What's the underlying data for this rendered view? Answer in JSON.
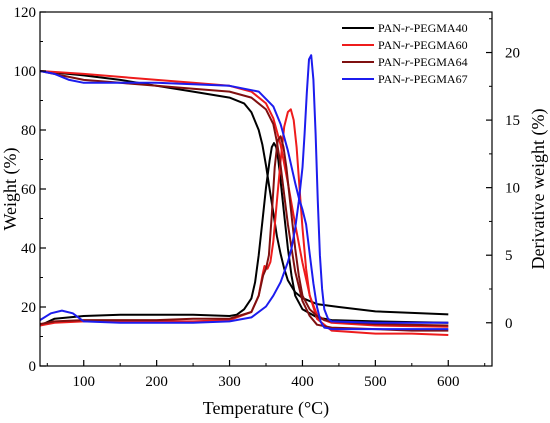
{
  "chart_data": {
    "type": "line",
    "title": "",
    "xlabel": "Temperature (°C)",
    "ylabel_left": "Weight (%)",
    "ylabel_right": "Derivative weight (%)",
    "xlim": [
      40,
      660
    ],
    "ylim_left": [
      0,
      120
    ],
    "ylim_right": [
      -3.2,
      23
    ],
    "x_ticks": [
      100,
      200,
      300,
      400,
      500,
      600
    ],
    "y_left_ticks": [
      0,
      20,
      40,
      60,
      80,
      100,
      120
    ],
    "y_right_ticks": [
      0,
      5,
      10,
      15,
      20
    ],
    "grid": false,
    "legend_position": "top-right",
    "series": [
      {
        "name": "PAN-r-PEGMA40",
        "color": "#000000",
        "weight": {
          "x": [
            40,
            60,
            100,
            150,
            200,
            250,
            300,
            320,
            330,
            340,
            345,
            350,
            355,
            360,
            365,
            370,
            375,
            380,
            390,
            400,
            420,
            450,
            500,
            550,
            600
          ],
          "y": [
            100,
            99.5,
            98.5,
            97,
            95,
            93,
            91,
            89,
            86,
            80,
            75,
            68,
            60,
            52,
            44,
            38,
            33,
            29,
            25,
            23,
            21,
            20,
            18.5,
            18,
            17.5
          ]
        },
        "derivative": {
          "x": [
            40,
            60,
            100,
            150,
            200,
            250,
            300,
            310,
            320,
            330,
            335,
            340,
            345,
            350,
            355,
            358,
            361,
            364,
            367,
            370,
            375,
            380,
            385,
            390,
            400,
            420,
            440,
            500,
            550,
            600
          ],
          "y": [
            -0.2,
            0.3,
            0.5,
            0.6,
            0.6,
            0.6,
            0.5,
            0.6,
            1.0,
            1.8,
            3.0,
            5.0,
            7.5,
            10.0,
            12.0,
            13.0,
            13.3,
            13.0,
            12.0,
            10.5,
            8.0,
            5.5,
            3.5,
            2.0,
            1.0,
            0.4,
            0.2,
            0.1,
            0.05,
            0.0
          ]
        }
      },
      {
        "name": "PAN-r-PEGMA60",
        "color": "#ee1c1c",
        "weight": {
          "x": [
            40,
            100,
            150,
            200,
            250,
            300,
            330,
            350,
            360,
            370,
            380,
            390,
            400,
            410,
            420,
            440,
            500,
            550,
            600
          ],
          "y": [
            100,
            99,
            98,
            97,
            96,
            95,
            93,
            89,
            84,
            75,
            62,
            48,
            35,
            24,
            16,
            12,
            11,
            11,
            10.5
          ]
        },
        "derivative": {
          "x": [
            40,
            60,
            100,
            150,
            200,
            250,
            300,
            330,
            340,
            345,
            348,
            352,
            356,
            360,
            365,
            370,
            375,
            380,
            384,
            388,
            392,
            396,
            400,
            405,
            410,
            420,
            430,
            440,
            500,
            600
          ],
          "y": [
            -0.2,
            0.0,
            0.1,
            0.1,
            0.1,
            0.1,
            0.2,
            0.8,
            2.0,
            3.5,
            4.2,
            4.0,
            4.5,
            6.0,
            9.0,
            12.0,
            14.5,
            15.6,
            15.8,
            15.0,
            13.0,
            10.0,
            7.0,
            4.0,
            2.0,
            0.6,
            0.2,
            0.0,
            -0.2,
            -0.3
          ]
        }
      },
      {
        "name": "PAN-r-PEGMA64",
        "color": "#7f1010",
        "weight": {
          "x": [
            40,
            100,
            150,
            200,
            250,
            300,
            330,
            350,
            360,
            365,
            370,
            375,
            380,
            385,
            390,
            400,
            410,
            420,
            440,
            500,
            550,
            600
          ],
          "y": [
            100,
            97,
            96,
            95,
            94,
            93,
            91,
            87,
            82,
            76,
            68,
            58,
            48,
            40,
            32,
            22,
            17,
            14,
            13,
            12.5,
            12,
            12
          ]
        },
        "derivative": {
          "x": [
            40,
            60,
            100,
            150,
            200,
            250,
            300,
            330,
            340,
            346,
            350,
            354,
            358,
            362,
            366,
            370,
            374,
            378,
            382,
            386,
            390,
            395,
            400,
            410,
            420,
            430,
            440,
            500,
            600
          ],
          "y": [
            -0.1,
            0.1,
            0.2,
            0.2,
            0.2,
            0.3,
            0.3,
            0.8,
            2.0,
            3.5,
            4.0,
            5.0,
            8.0,
            11.5,
            13.5,
            13.8,
            13.0,
            11.5,
            9.5,
            7.5,
            5.5,
            3.5,
            2.0,
            1.0,
            0.5,
            0.2,
            0.1,
            -0.1,
            -0.2
          ]
        }
      },
      {
        "name": "PAN-r-PEGMA67",
        "color": "#1c1cee",
        "weight": {
          "x": [
            40,
            60,
            80,
            100,
            150,
            200,
            250,
            300,
            340,
            360,
            370,
            380,
            390,
            395,
            400,
            405,
            410,
            415,
            420,
            425,
            430,
            435,
            440,
            450,
            500,
            550,
            600
          ],
          "y": [
            100,
            99,
            97,
            96,
            96,
            96,
            95.5,
            95,
            93,
            88,
            82,
            73,
            62,
            57,
            53,
            48,
            38,
            28,
            20,
            15,
            13,
            12.8,
            12.5,
            12.5,
            12.5,
            12.5,
            12.5
          ]
        },
        "derivative": {
          "x": [
            40,
            55,
            70,
            85,
            100,
            150,
            200,
            250,
            300,
            330,
            350,
            360,
            370,
            380,
            385,
            390,
            395,
            400,
            403,
            406,
            409,
            412,
            415,
            418,
            421,
            424,
            427,
            430,
            435,
            440,
            500,
            600
          ],
          "y": [
            0.2,
            0.7,
            0.9,
            0.7,
            0.1,
            0.0,
            0.0,
            0.0,
            0.1,
            0.4,
            1.2,
            2.0,
            3.0,
            4.5,
            5.5,
            7.0,
            9.0,
            11.5,
            14.0,
            17.0,
            19.5,
            19.8,
            18.0,
            14.0,
            9.0,
            5.0,
            2.5,
            1.0,
            0.3,
            0.1,
            0.0,
            0.0
          ]
        }
      }
    ]
  }
}
